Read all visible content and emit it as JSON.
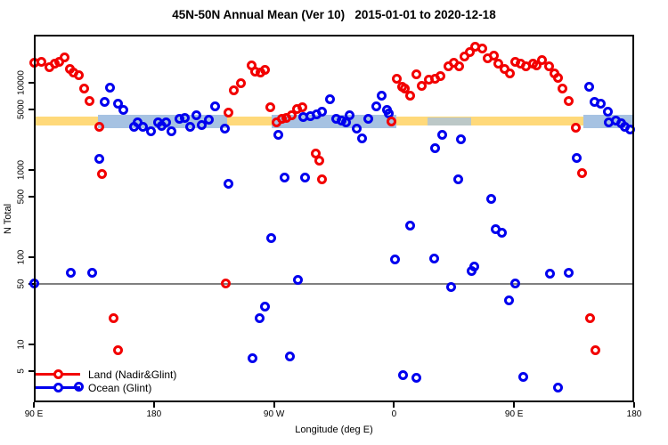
{
  "title": "45N-50N Annual Mean (Ver 10)   2015-01-01 to 2020-12-18",
  "legend": {
    "items": [
      {
        "label": "Land (Nadir&Glint)",
        "color": "#f20000"
      },
      {
        "label": "Ocean (Glint)",
        "color": "#0000ee"
      }
    ]
  },
  "chart_data": {
    "type": "scatter",
    "title": "45N-50N Annual Mean (Ver 10)   2015-01-01 to 2020-12-18",
    "xlabel": "Longitude (deg E)",
    "ylabel": "N Total",
    "x_scale": "linear",
    "y_scale": "log",
    "xlim": [
      90,
      540
    ],
    "ylim": [
      2.2,
      35000
    ],
    "grid": "off",
    "legend_position": "bottom-left-inside",
    "x_ticks": [
      {
        "lon": 90,
        "label": "90 E"
      },
      {
        "lon": 180,
        "label": "180"
      },
      {
        "lon": 270,
        "label": "90 W"
      },
      {
        "lon": 360,
        "label": "0"
      },
      {
        "lon": 450,
        "label": "90 E"
      },
      {
        "lon": 540,
        "label": "180"
      }
    ],
    "y_ticks": [
      {
        "value": 10000,
        "label": "10000"
      },
      {
        "value": 5000,
        "label": "5000"
      },
      {
        "value": 1000,
        "label": "1000"
      },
      {
        "value": 500,
        "label": "500"
      },
      {
        "value": 100,
        "label": "100"
      },
      {
        "value": 50,
        "label": "50"
      },
      {
        "value": 10,
        "label": "10"
      },
      {
        "value": 5,
        "label": "5"
      }
    ],
    "reference_line": {
      "value": 50,
      "color": "#7f7f7f"
    },
    "bands": {
      "yellow_band": {
        "value_from": 3240,
        "value_to": 4100,
        "lon_from": 90,
        "lon_to": 540,
        "color": "#ffd97a"
      },
      "blue_band_color": "#a6c2e2",
      "blue_band_value_from": 3050,
      "blue_band_value_to": 4300,
      "blue_band_segments": [
        {
          "lon_from": 138,
          "lon_to": 235,
          "thin": false
        },
        {
          "lon_from": 268,
          "lon_to": 362,
          "thin": false
        },
        {
          "lon_from": 385,
          "lon_to": 418,
          "thin": true
        },
        {
          "lon_from": 502,
          "lon_to": 540,
          "thin": false
        }
      ]
    },
    "series": [
      {
        "name": "Land (Nadir&Glint)",
        "color": "#f20000",
        "points": [
          [
            90,
            16900
          ],
          [
            96,
            17300
          ],
          [
            102,
            15200
          ],
          [
            106,
            16400
          ],
          [
            109,
            17300
          ],
          [
            113,
            19400
          ],
          [
            117,
            14500
          ],
          [
            120,
            13200
          ],
          [
            124,
            12200
          ],
          [
            128,
            8600
          ],
          [
            132,
            6200
          ],
          [
            139,
            3100
          ],
          [
            141,
            910
          ],
          [
            150,
            20
          ],
          [
            153,
            8.5
          ],
          [
            234,
            50
          ],
          [
            236,
            4600
          ],
          [
            240,
            8100
          ],
          [
            245,
            9800
          ],
          [
            253,
            15700
          ],
          [
            256,
            13400
          ],
          [
            260,
            13200
          ],
          [
            263,
            14100
          ],
          [
            267,
            5250
          ],
          [
            272,
            3530
          ],
          [
            276,
            3830
          ],
          [
            279,
            3920
          ],
          [
            283,
            4290
          ],
          [
            287,
            4950
          ],
          [
            291,
            5250
          ],
          [
            301,
            1560
          ],
          [
            304,
            1280
          ],
          [
            306,
            790
          ],
          [
            358,
            3620
          ],
          [
            362,
            11100
          ],
          [
            366,
            9100
          ],
          [
            368,
            8600
          ],
          [
            372,
            7100
          ],
          [
            377,
            12400
          ],
          [
            381,
            9300
          ],
          [
            386,
            10900
          ],
          [
            391,
            11100
          ],
          [
            395,
            11800
          ],
          [
            401,
            15400
          ],
          [
            405,
            16900
          ],
          [
            409,
            15400
          ],
          [
            413,
            20200
          ],
          [
            417,
            22600
          ],
          [
            421,
            25700
          ],
          [
            426,
            24700
          ],
          [
            430,
            19000
          ],
          [
            435,
            20700
          ],
          [
            438,
            16500
          ],
          [
            443,
            14300
          ],
          [
            447,
            12900
          ],
          [
            451,
            17300
          ],
          [
            455,
            16400
          ],
          [
            459,
            15400
          ],
          [
            464,
            16500
          ],
          [
            467,
            15900
          ],
          [
            471,
            18400
          ],
          [
            476,
            15400
          ],
          [
            480,
            12700
          ],
          [
            483,
            11400
          ],
          [
            486,
            8600
          ],
          [
            491,
            6200
          ],
          [
            496,
            3040
          ],
          [
            501,
            930
          ],
          [
            507,
            20
          ],
          [
            511,
            8.5
          ]
        ]
      },
      {
        "name": "Ocean (Glint)",
        "color": "#0000ee",
        "points": [
          [
            90,
            50
          ],
          [
            118,
            66
          ],
          [
            124,
            3.3
          ],
          [
            134,
            67
          ],
          [
            139,
            1330
          ],
          [
            143,
            6000
          ],
          [
            147,
            8800
          ],
          [
            153,
            5800
          ],
          [
            157,
            4850
          ],
          [
            165,
            3140
          ],
          [
            168,
            3480
          ],
          [
            172,
            3090
          ],
          [
            178,
            2800
          ],
          [
            183,
            3530
          ],
          [
            186,
            3210
          ],
          [
            189,
            3530
          ],
          [
            193,
            2800
          ],
          [
            199,
            3830
          ],
          [
            203,
            3920
          ],
          [
            207,
            3090
          ],
          [
            212,
            4290
          ],
          [
            216,
            3260
          ],
          [
            221,
            3770
          ],
          [
            226,
            5360
          ],
          [
            233,
            2970
          ],
          [
            236,
            700
          ],
          [
            254,
            7
          ],
          [
            259,
            20
          ],
          [
            263,
            27
          ],
          [
            268,
            165
          ],
          [
            273,
            2550
          ],
          [
            278,
            810
          ],
          [
            282,
            7.2
          ],
          [
            288,
            55
          ],
          [
            292,
            4010
          ],
          [
            293,
            810
          ],
          [
            297,
            4170
          ],
          [
            302,
            4390
          ],
          [
            306,
            4680
          ],
          [
            312,
            6470
          ],
          [
            317,
            3830
          ],
          [
            321,
            3720
          ],
          [
            324,
            3530
          ],
          [
            327,
            4290
          ],
          [
            332,
            2970
          ],
          [
            336,
            2290
          ],
          [
            341,
            3830
          ],
          [
            347,
            5360
          ],
          [
            351,
            7100
          ],
          [
            355,
            4850
          ],
          [
            356,
            4460
          ],
          [
            361,
            94
          ],
          [
            367,
            4.4
          ],
          [
            372,
            231
          ],
          [
            377,
            4.1
          ],
          [
            390,
            97
          ],
          [
            391,
            1790
          ],
          [
            396,
            2550
          ],
          [
            403,
            45
          ],
          [
            408,
            780
          ],
          [
            410,
            2260
          ],
          [
            418,
            69
          ],
          [
            420,
            78
          ],
          [
            433,
            470
          ],
          [
            436,
            208
          ],
          [
            441,
            190
          ],
          [
            446,
            32
          ],
          [
            451,
            50
          ],
          [
            457,
            4.2
          ],
          [
            477,
            65
          ],
          [
            483,
            3.2
          ],
          [
            491,
            66
          ],
          [
            497,
            1360
          ],
          [
            506,
            9100
          ],
          [
            510,
            6000
          ],
          [
            515,
            5800
          ],
          [
            520,
            4680
          ],
          [
            521,
            3530
          ],
          [
            526,
            3720
          ],
          [
            530,
            3450
          ],
          [
            533,
            3160
          ],
          [
            537,
            2880
          ]
        ]
      }
    ]
  }
}
